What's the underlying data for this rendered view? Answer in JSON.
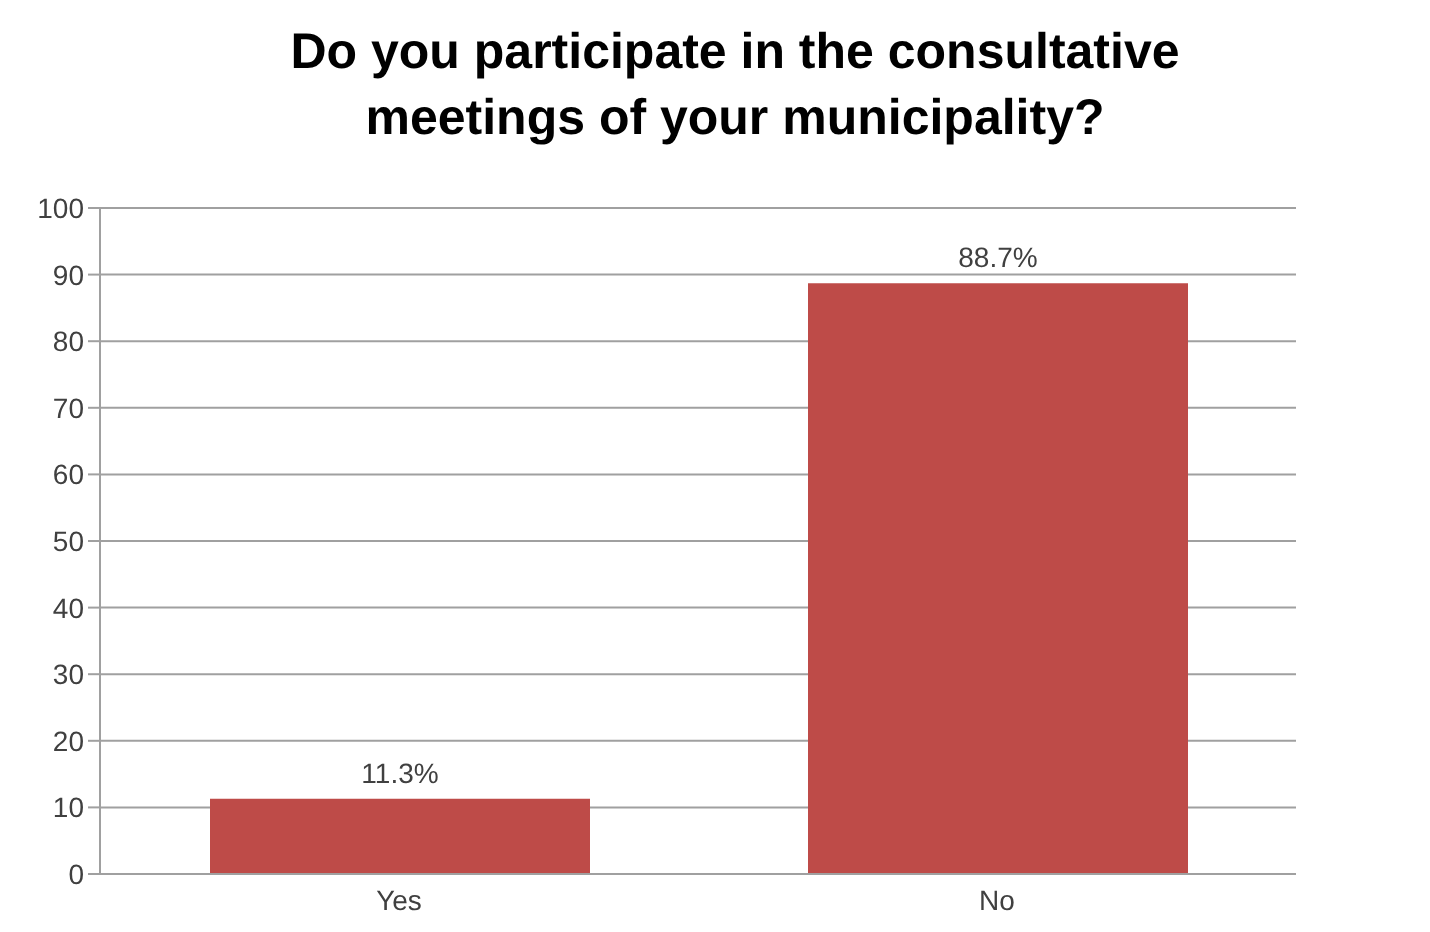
{
  "chart_data": {
    "type": "bar",
    "title": "Do you participate in the consultative meetings of your municipality?",
    "categories": [
      "Yes",
      "No"
    ],
    "values": [
      11.3,
      88.7
    ],
    "value_labels": [
      "11.3%",
      "88.7%"
    ],
    "color": "#be4b48",
    "ylim": [
      0,
      100
    ],
    "yticks": [
      0,
      10,
      20,
      30,
      40,
      50,
      60,
      70,
      80,
      90,
      100
    ],
    "grid": "y"
  }
}
